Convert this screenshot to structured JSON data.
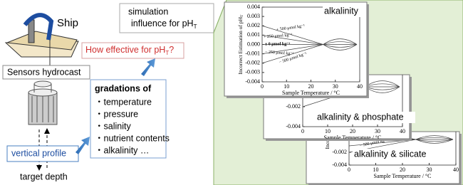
{
  "ship": {
    "label": "Ship"
  },
  "hydrocast": {
    "label": "Sensors hydrocast"
  },
  "profile": {
    "label": "vertical profile",
    "depth": "target depth"
  },
  "question": {
    "text": "How effective for pH",
    "subscript": "T",
    "suffix": "?"
  },
  "simulation": {
    "line1": "simulation",
    "line2": "influence for pH",
    "subscript": "T"
  },
  "gradations": {
    "title": "gradations of",
    "items": [
      "・temperature",
      "・pressure",
      "・salinity",
      "・nutrient contents",
      "・alkalinity …"
    ]
  },
  "charts": [
    {
      "title": "alkalinity",
      "y_label": "Incorrect Estimation of pH",
      "y_label_sub": "T",
      "x_label": "Sample Temperature / °C",
      "ylim": [
        -0.004,
        0.004
      ],
      "yticks": [
        {
          "value": 0.004,
          "label": "0.004"
        },
        {
          "value": 0.003,
          "label": "0.003"
        },
        {
          "value": 0.002,
          "label": "0.002"
        },
        {
          "value": 0.001,
          "label": "0.001"
        },
        {
          "value": 0,
          "label": "0.000"
        },
        {
          "value": -0.001,
          "label": "-0.001"
        },
        {
          "value": -0.002,
          "label": "-0.002"
        },
        {
          "value": -0.003,
          "label": "-0.003"
        },
        {
          "value": -0.004,
          "label": "-0.004"
        }
      ],
      "xlim": [
        0,
        40
      ],
      "xticks": [
        0,
        10,
        20,
        30,
        40
      ],
      "annotations": [
        "+ 500 μmol kg⁻¹",
        "+ 250 μmol kg⁻¹",
        "± 0 μmol kg⁻¹",
        "− 250 μmol kg⁻¹",
        "− 500 μmol kg⁻¹"
      ]
    },
    {
      "title": "alkalinity & phosphate",
      "y_label": "Incorrect",
      "x_label": "Sample Temperature / °C",
      "ylim": [
        -0.004,
        0.004
      ],
      "yticks": [
        {
          "value": -0.002,
          "label": "-0.002"
        },
        {
          "value": -0.004,
          "label": "-0.004"
        }
      ],
      "xlim": [
        0,
        40
      ],
      "xticks": [
        0,
        10,
        20,
        30,
        40
      ]
    },
    {
      "title": "alkalinity & silicate",
      "y_label": "Incorrect",
      "x_label": "Sample Temperature / °C",
      "ylim": [
        -0.004,
        0.004
      ],
      "yticks": [
        {
          "value": -0.002,
          "label": "-0.002"
        },
        {
          "value": -0.004,
          "label": "-0.004"
        }
      ],
      "xlim": [
        0,
        40
      ],
      "xticks": [
        0,
        10,
        20,
        30,
        40
      ],
      "annotations": [
        "− 500 μmol kg⁻¹"
      ]
    }
  ]
}
